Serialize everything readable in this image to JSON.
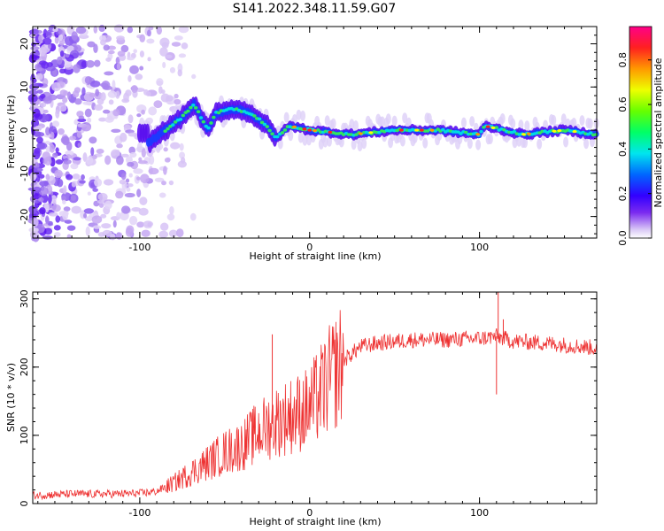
{
  "title": "S141.2022.348.11.59.G07",
  "colors": {
    "snr_line": "#ee3333",
    "axis": "#000000"
  },
  "chart_data": [
    {
      "type": "heatmap",
      "xlabel": "Height of straight line (km)",
      "ylabel": "Frequency (Hz)",
      "xlim": [
        -163,
        169
      ],
      "ylim": [
        -25,
        24
      ],
      "xticks": [
        -100,
        0,
        100
      ],
      "yticks": [
        -20,
        -10,
        0,
        10,
        20
      ],
      "colorbar": {
        "label": "Normalized spectral amplitude",
        "range": [
          0,
          0.95
        ],
        "ticks": [
          "0.0",
          "0.2",
          "0.4",
          "0.6",
          "0.8"
        ],
        "colormap": "rainbow (violet to red/magenta)"
      },
      "ridge": [
        {
          "x": -95,
          "y": -3
        },
        {
          "x": -85,
          "y": 0
        },
        {
          "x": -75,
          "y": 3
        },
        {
          "x": -68,
          "y": 6
        },
        {
          "x": -60,
          "y": 0
        },
        {
          "x": -55,
          "y": 4
        },
        {
          "x": -45,
          "y": 5
        },
        {
          "x": -35,
          "y": 4
        },
        {
          "x": -25,
          "y": 1
        },
        {
          "x": -20,
          "y": -2
        },
        {
          "x": -12,
          "y": 1
        },
        {
          "x": 0,
          "y": 0
        },
        {
          "x": 25,
          "y": -1
        },
        {
          "x": 50,
          "y": 0
        },
        {
          "x": 75,
          "y": 0
        },
        {
          "x": 100,
          "y": -1
        },
        {
          "x": 103,
          "y": 1
        },
        {
          "x": 125,
          "y": -1
        },
        {
          "x": 150,
          "y": 0
        },
        {
          "x": 169,
          "y": -1
        }
      ]
    },
    {
      "type": "line",
      "xlabel": "Height of straight line (km)",
      "ylabel": "SNR (10 * v/v)",
      "xlim": [
        -163,
        169
      ],
      "ylim": [
        0,
        310
      ],
      "xticks": [
        -100,
        0,
        100
      ],
      "yticks": [
        0,
        100,
        200,
        300
      ],
      "trend": [
        {
          "x": -163,
          "y": 12
        },
        {
          "x": -140,
          "y": 14
        },
        {
          "x": -120,
          "y": 14
        },
        {
          "x": -100,
          "y": 15
        },
        {
          "x": -90,
          "y": 18
        },
        {
          "x": -80,
          "y": 30
        },
        {
          "x": -70,
          "y": 45
        },
        {
          "x": -60,
          "y": 60
        },
        {
          "x": -50,
          "y": 75
        },
        {
          "x": -40,
          "y": 85
        },
        {
          "x": -30,
          "y": 105
        },
        {
          "x": -20,
          "y": 120
        },
        {
          "x": -10,
          "y": 130
        },
        {
          "x": 0,
          "y": 140
        },
        {
          "x": 10,
          "y": 175
        },
        {
          "x": 20,
          "y": 210
        },
        {
          "x": 30,
          "y": 230
        },
        {
          "x": 40,
          "y": 235
        },
        {
          "x": 60,
          "y": 240
        },
        {
          "x": 80,
          "y": 240
        },
        {
          "x": 100,
          "y": 242
        },
        {
          "x": 110,
          "y": 245
        },
        {
          "x": 120,
          "y": 238
        },
        {
          "x": 140,
          "y": 235
        },
        {
          "x": 169,
          "y": 228
        }
      ],
      "spikes": [
        {
          "x": -22,
          "y": 248
        },
        {
          "x": 110,
          "y": 160
        },
        {
          "x": 111,
          "y": 310
        },
        {
          "x": 114,
          "y": 270
        }
      ]
    }
  ]
}
